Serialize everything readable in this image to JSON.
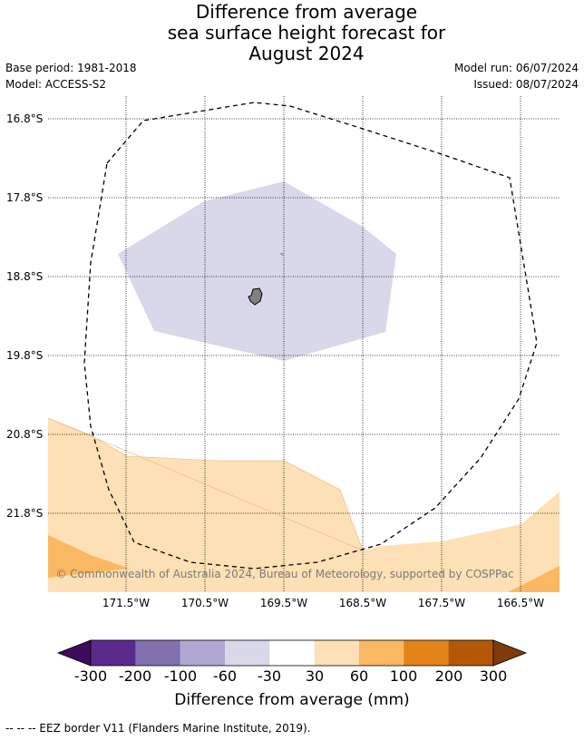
{
  "title_lines": [
    "Difference from average",
    "sea surface height forecast for",
    "August 2024"
  ],
  "base_period": "Base period: 1981-2018",
  "model": "Model: ACCESS-S2",
  "model_run": "Model run: 06/07/2024",
  "issued": "Issued: 08/07/2024",
  "copyright": "© Commonwealth of Australia 2024, Bureau of Meteorology, supported by COSPPac",
  "footer": "--  --  -- EEZ border V11 (Flanders Marine Institute, 2019).",
  "map": {
    "lat_labels": [
      "16.8°S",
      "17.8°S",
      "18.8°S",
      "19.8°S",
      "20.8°S",
      "21.8°S"
    ],
    "lon_labels": [
      "171.5°W",
      "170.5°W",
      "169.5°W",
      "168.5°W",
      "167.5°W",
      "166.5°W"
    ],
    "land_color": "#808080",
    "eez_border_style": "dashed"
  },
  "colorbar": {
    "title": "Difference from average (mm)",
    "ticks": [
      "-300",
      "-200",
      "-100",
      "-60",
      "-30",
      "30",
      "60",
      "100",
      "200",
      "300"
    ],
    "colors": [
      "#3f0b5c",
      "#5a2a8c",
      "#8271b0",
      "#b0a8d2",
      "#d8d8ea",
      "#ffffff",
      "#fde0b5",
      "#fbb862",
      "#e2841a",
      "#b45808",
      "#7f3c0b"
    ]
  }
}
